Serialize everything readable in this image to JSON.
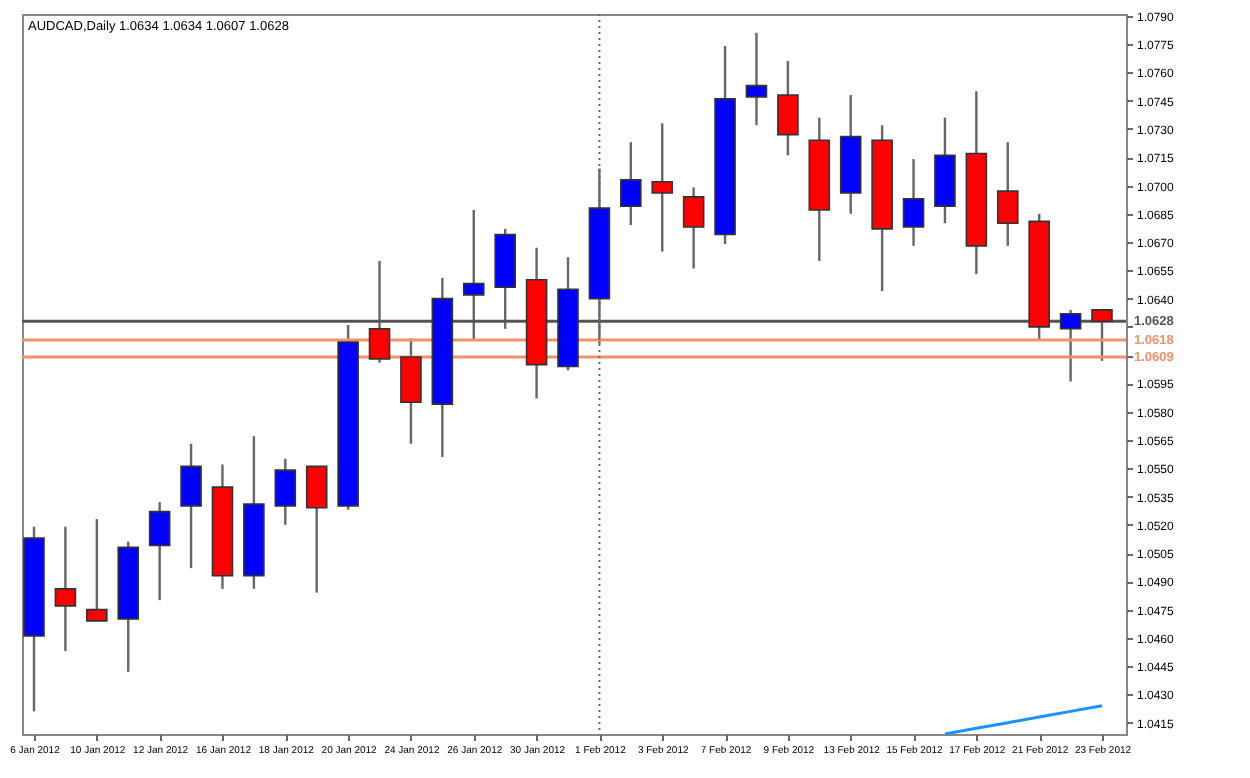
{
  "chart_data": {
    "type": "candlestick",
    "title": "AUDCAD,Daily  1.0634 1.0634 1.0607 1.0628",
    "categories": [
      "6 Jan 2012",
      null,
      "10 Jan 2012",
      null,
      "12 Jan 2012",
      null,
      "16 Jan 2012",
      null,
      "18 Jan 2012",
      null,
      "20 Jan 2012",
      null,
      "24 Jan 2012",
      null,
      "26 Jan 2012",
      null,
      "30 Jan 2012",
      null,
      "1 Feb 2012",
      null,
      "3 Feb 2012",
      null,
      "7 Feb 2012",
      null,
      "9 Feb 2012",
      null,
      "13 Feb 2012",
      null,
      "15 Feb 2012",
      null,
      "17 Feb 2012",
      null,
      "21 Feb 2012",
      null,
      "23 Feb 2012"
    ],
    "ohlc": [
      [
        1.0461,
        1.0519,
        1.0421,
        1.0513
      ],
      [
        1.0486,
        1.0519,
        1.0453,
        1.0477
      ],
      [
        1.0475,
        1.0523,
        1.0469,
        1.0469
      ],
      [
        1.047,
        1.0511,
        1.0442,
        1.0508
      ],
      [
        1.0509,
        1.0532,
        1.048,
        1.0527
      ],
      [
        1.053,
        1.0563,
        1.0497,
        1.0551
      ],
      [
        1.054,
        1.0552,
        1.0486,
        1.0493
      ],
      [
        1.0493,
        1.0567,
        1.0486,
        1.0531
      ],
      [
        1.053,
        1.0555,
        1.052,
        1.0549
      ],
      [
        1.0551,
        1.0551,
        1.0484,
        1.0529
      ],
      [
        1.053,
        1.0626,
        1.0528,
        1.0617
      ],
      [
        1.0624,
        1.066,
        1.0606,
        1.0608
      ],
      [
        1.0609,
        1.0619,
        1.0563,
        1.0585
      ],
      [
        1.0584,
        1.0651,
        1.0556,
        1.064
      ],
      [
        1.0642,
        1.0687,
        1.0618,
        1.0648
      ],
      [
        1.0646,
        1.0677,
        1.0624,
        1.0674
      ],
      [
        1.065,
        1.0667,
        1.0587,
        1.0605
      ],
      [
        1.0604,
        1.0662,
        1.0602,
        1.0645
      ],
      [
        1.064,
        1.0709,
        1.0616,
        1.0688
      ],
      [
        1.0689,
        1.0723,
        1.0679,
        1.0703
      ],
      [
        1.0702,
        1.0733,
        1.0665,
        1.0696
      ],
      [
        1.0694,
        1.0699,
        1.0656,
        1.0678
      ],
      [
        1.0674,
        1.0774,
        1.0669,
        1.0746
      ],
      [
        1.0747,
        1.0781,
        1.0732,
        1.0753
      ],
      [
        1.0748,
        1.0766,
        1.0716,
        1.0727
      ],
      [
        1.0724,
        1.0736,
        1.066,
        1.0687
      ],
      [
        1.0696,
        1.0748,
        1.0685,
        1.0726
      ],
      [
        1.0724,
        1.0732,
        1.0644,
        1.0677
      ],
      [
        1.0678,
        1.0714,
        1.0668,
        1.0693
      ],
      [
        1.0689,
        1.0736,
        1.068,
        1.0716
      ],
      [
        1.0717,
        1.075,
        1.0653,
        1.0668
      ],
      [
        1.0697,
        1.0723,
        1.0668,
        1.068
      ],
      [
        1.0681,
        1.0685,
        1.0618,
        1.0625
      ],
      [
        1.0624,
        1.0634,
        1.0596,
        1.0632
      ],
      [
        1.0634,
        1.0634,
        1.0607,
        1.0628
      ]
    ],
    "colors": [
      "#0000ff",
      "#ff0000",
      "#ff0000",
      "#0000ff",
      "#0000ff",
      "#0000ff",
      "#ff0000",
      "#0000ff",
      "#0000ff",
      "#ff0000",
      "#0000ff",
      "#ff0000",
      "#ff0000",
      "#0000ff",
      "#0000ff",
      "#0000ff",
      "#ff0000",
      "#0000ff",
      "#0000ff",
      "#0000ff",
      "#ff0000",
      "#ff0000",
      "#0000ff",
      "#0000ff",
      "#ff0000",
      "#ff0000",
      "#0000ff",
      "#ff0000",
      "#0000ff",
      "#0000ff",
      "#ff0000",
      "#ff0000",
      "#ff0000",
      "#0000ff",
      "#ff0000"
    ],
    "series": [
      {
        "type": "line",
        "color": "#1e90ff",
        "values": [
          null,
          null,
          null,
          null,
          null,
          null,
          null,
          null,
          null,
          null,
          null,
          null,
          null,
          null,
          null,
          null,
          null,
          null,
          null,
          null,
          null,
          null,
          null,
          null,
          null,
          null,
          null,
          null,
          null,
          1.0409,
          1.0412,
          1.0415,
          1.0418,
          1.0421,
          1.0424
        ]
      }
    ],
    "ylim": [
      1.0409,
      1.0791
    ],
    "yticks": [
      {
        "value": 1.0415,
        "label": "1.0415"
      },
      {
        "value": 1.043,
        "label": "1.0430"
      },
      {
        "value": 1.0445,
        "label": "1.0445"
      },
      {
        "value": 1.046,
        "label": "1.0460"
      },
      {
        "value": 1.0475,
        "label": "1.0475"
      },
      {
        "value": 1.049,
        "label": "1.0490"
      },
      {
        "value": 1.0505,
        "label": "1.0505"
      },
      {
        "value": 1.052,
        "label": "1.0520"
      },
      {
        "value": 1.0535,
        "label": "1.0535"
      },
      {
        "value": 1.055,
        "label": "1.0550"
      },
      {
        "value": 1.0565,
        "label": "1.0565"
      },
      {
        "value": 1.058,
        "label": "1.0580"
      },
      {
        "value": 1.0595,
        "label": "1.0595"
      },
      {
        "value": 1.061,
        "label": null
      },
      {
        "value": 1.0625,
        "label": null
      },
      {
        "value": 1.064,
        "label": "1.0640"
      },
      {
        "value": 1.0655,
        "label": "1.0655"
      },
      {
        "value": 1.067,
        "label": "1.0670"
      },
      {
        "value": 1.0685,
        "label": "1.0685"
      },
      {
        "value": 1.07,
        "label": "1.0700"
      },
      {
        "value": 1.0715,
        "label": "1.0715"
      },
      {
        "value": 1.073,
        "label": "1.0730"
      },
      {
        "value": 1.0745,
        "label": "1.0745"
      },
      {
        "value": 1.076,
        "label": "1.0760"
      },
      {
        "value": 1.0775,
        "label": "1.0775"
      },
      {
        "value": 1.079,
        "label": "1.0790"
      }
    ],
    "ref_lines": [
      {
        "axis": "y",
        "value": 1.0628,
        "label": "1.0628",
        "color": "#555555"
      },
      {
        "axis": "y",
        "value": 1.0618,
        "label": "1.0618",
        "color": "#f4916a"
      },
      {
        "axis": "y",
        "value": 1.0609,
        "label": "1.0609",
        "color": "#f4916a"
      },
      {
        "axis": "x",
        "value": "1 Feb 2012",
        "color": "#666666",
        "line_style": "dotted"
      }
    ],
    "line_style": "solid",
    "grid": false
  }
}
